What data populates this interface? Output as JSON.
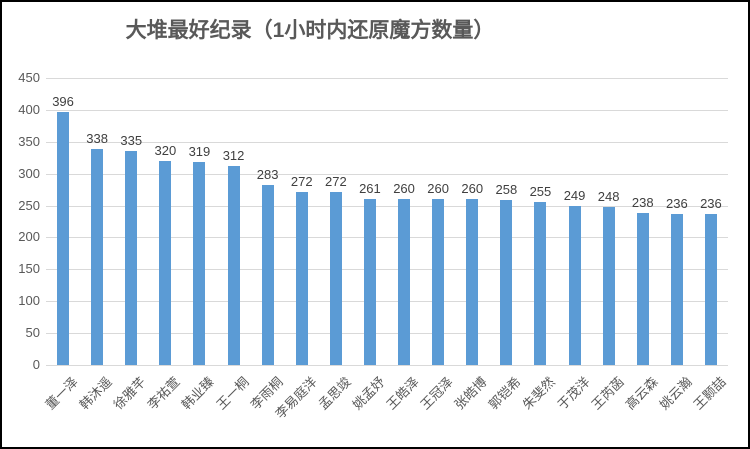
{
  "chart_data": {
    "type": "bar",
    "title": "大堆最好纪录（1小时内还原魔方数量）",
    "categories": [
      "董一泽",
      "韩沐遥",
      "徐雅芊",
      "李祐萱",
      "韩业臻",
      "王一桐",
      "李雨桐",
      "李易庭洋",
      "孟思竣",
      "姚孟妤",
      "王皓泽",
      "王冠泽",
      "张皓博",
      "郭铠希",
      "朱斐然",
      "于茂洋",
      "王芮菡",
      "高云森",
      "姚云瀚",
      "王颢喆"
    ],
    "values": [
      396,
      338,
      335,
      320,
      319,
      312,
      283,
      272,
      272,
      261,
      260,
      260,
      260,
      258,
      255,
      249,
      248,
      238,
      236,
      236
    ],
    "xlabel": "",
    "ylabel": "",
    "ylim": [
      0,
      450
    ],
    "ytick_step": 50,
    "yticks": [
      0,
      50,
      100,
      150,
      200,
      250,
      300,
      350,
      400,
      450
    ],
    "grid": true,
    "legend_position": "none",
    "data_labels": true,
    "x_label_rotation": -45,
    "colors": {
      "bar": "#5b9bd5",
      "gridline": "#d9d9d9",
      "title": "#595959",
      "axis_tick": "#595959",
      "value_label": "#404040",
      "frame_border": "#000000",
      "background": "#ffffff"
    }
  }
}
